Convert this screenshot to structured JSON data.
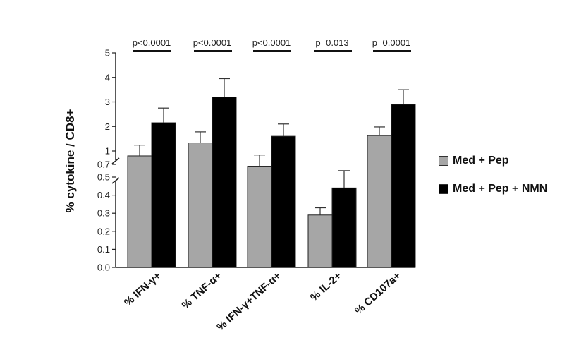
{
  "chart_data": {
    "type": "bar",
    "ylabel": "% cytokine / CD8+",
    "categories": [
      "% IFN-γ+",
      "% TNF-α+",
      "% IFN-γ+TNF-α+",
      "% IL-2+",
      "% CD107a+"
    ],
    "series": [
      {
        "name": "Med + Pep",
        "color": "#a6a6a6",
        "values": [
          0.89,
          1.33,
          0.66,
          0.29,
          1.63
        ],
        "error": [
          0.35,
          0.45,
          0.25,
          0.04,
          0.35
        ]
      },
      {
        "name": "Med + Pep + NMN",
        "color": "#000000",
        "values": [
          2.15,
          3.2,
          1.6,
          0.44,
          2.9
        ],
        "error": [
          0.6,
          0.75,
          0.5,
          0.12,
          0.6
        ]
      }
    ],
    "y_axis_segments": {
      "lower": {
        "range": [
          0,
          0.5
        ],
        "ticks": [
          "0.0",
          "0.1",
          "0.2",
          "0.3",
          "0.4",
          "0.5"
        ]
      },
      "upper": {
        "range": [
          0.7,
          5
        ],
        "ticks": [
          "0.7",
          "1",
          "2",
          "3",
          "4",
          "5"
        ]
      },
      "axis_break": true
    },
    "annotations": [
      "p<0.0001",
      "p<0.0001",
      "p<0.0001",
      "p=0.013",
      "p=0.0001"
    ],
    "legend_position": "right",
    "grid": false
  }
}
